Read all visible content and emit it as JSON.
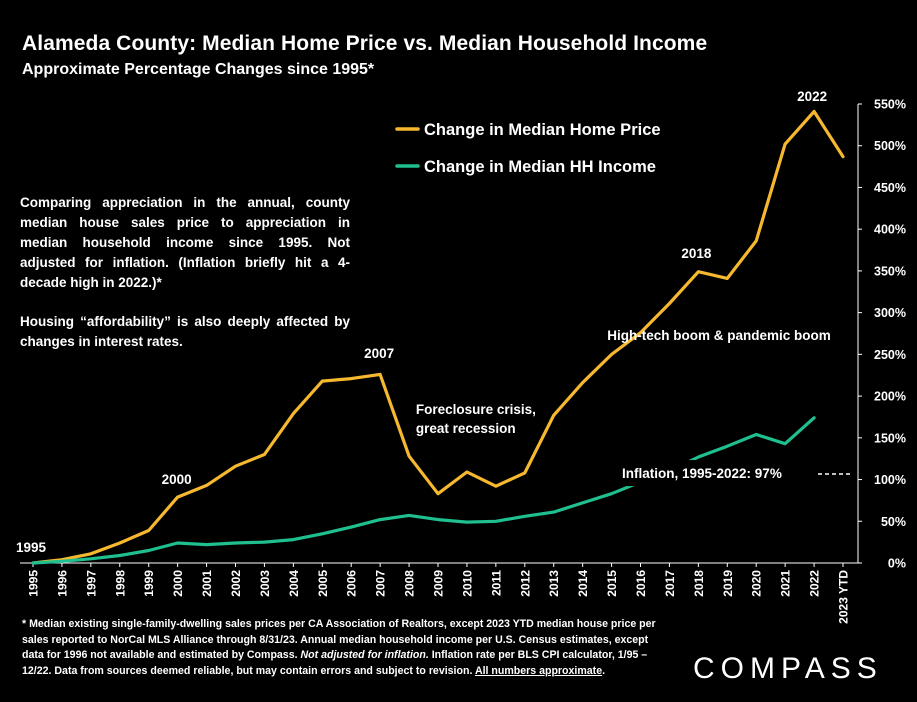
{
  "title": "Alameda County: Median Home Price vs. Median Household Income",
  "subtitle": "Approximate Percentage Changes since 1995*",
  "note_paragraphs": [
    "Comparing appreciation in the annual, county median house sales price to appreciation in median household income since 1995. Not adjusted for inflation. (Inflation briefly hit a 4-decade high in 2022.)*",
    "Housing “affordability” is also deeply affected by changes in interest rates."
  ],
  "footnote": {
    "part1": "* Median existing single-family-dwelling sales prices per CA Association of Realtors, except 2023 YTD median house price per sales reported to NorCal MLS Alliance through 8/31/23. Annual median household income per U.S. Census estimates, except data for 1996 not available and estimated by Compass. ",
    "italic": "Not adjusted for inflation.",
    "part2": " Inflation rate per BLS CPI calculator, 1/95 – 12/22. Data from sources deemed reliable, but may contain errors and subject to revision. ",
    "underlined": "All numbers approximate",
    "end": "."
  },
  "logo": "COMPASS",
  "colors": {
    "home_price": "#F5B82E",
    "income": "#1FBF8F",
    "background": "#000000",
    "text": "#FFFFFF"
  },
  "chart_data": {
    "type": "line",
    "title": "Alameda County: Median Home Price vs. Median Household Income",
    "subtitle": "Approximate Percentage Changes since 1995*",
    "categories": [
      "1995",
      "1996",
      "1997",
      "1998",
      "1999",
      "2000",
      "2001",
      "2002",
      "2003",
      "2004",
      "2005",
      "2006",
      "2007",
      "2008",
      "2009",
      "2010",
      "2011",
      "2012",
      "2013",
      "2014",
      "2015",
      "2016",
      "2017",
      "2018",
      "2019",
      "2020",
      "2021",
      "2022",
      "2023 YTD"
    ],
    "y_ticks": [
      "0%",
      "50%",
      "100%",
      "150%",
      "200%",
      "250%",
      "300%",
      "350%",
      "400%",
      "450%",
      "500%",
      "550%"
    ],
    "ylim": [
      0,
      550
    ],
    "y_axis_side": "right",
    "grid": false,
    "legend_position": "top-center",
    "series": [
      {
        "name": "Change in Median Home Price",
        "color": "#F5B82E",
        "values": [
          0,
          4,
          11,
          24,
          39,
          79,
          93,
          116,
          130,
          179,
          218,
          221,
          226,
          128,
          83,
          109,
          92,
          108,
          177,
          216,
          250,
          276,
          311,
          349,
          341,
          386,
          502,
          541,
          487
        ]
      },
      {
        "name": "Change in Median HH Income",
        "color": "#1FBF8F",
        "values": [
          0,
          2,
          5,
          9,
          15,
          24,
          22,
          24,
          25,
          28,
          35,
          43,
          52,
          57,
          52,
          49,
          50,
          56,
          61,
          72,
          83,
          97,
          110,
          127,
          140,
          154,
          143,
          174,
          null
        ]
      }
    ],
    "reference_line": {
      "label": "Inflation, 1995-2022:  97%",
      "value": 97
    },
    "annotations": [
      {
        "text": "1995",
        "year": "1995"
      },
      {
        "text": "2000",
        "year": "2000"
      },
      {
        "text": "2007",
        "year": "2007"
      },
      {
        "text": "2018",
        "year": "2018"
      },
      {
        "text": "2022",
        "year": "2022"
      },
      {
        "text": "Foreclosure crisis,",
        "year": "2011"
      },
      {
        "text": "great recession",
        "year": "2011"
      },
      {
        "text": "High-tech boom & pandemic boom",
        "year": "2019"
      }
    ]
  }
}
